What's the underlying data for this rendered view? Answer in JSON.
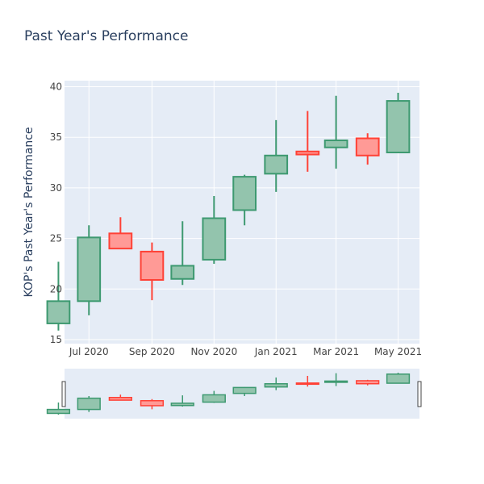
{
  "chart_data": {
    "type": "candlestick",
    "title": "Past Year's Performance",
    "ylabel": "KOP's Past Year's Performance",
    "xlabel": "",
    "ylim": [
      14.6,
      40.6
    ],
    "yticks": [
      15,
      20,
      25,
      30,
      35,
      40
    ],
    "xlim": [
      "2020-06-07",
      "2021-05-22"
    ],
    "xticks": [
      {
        "date": "2020-07-01",
        "label": "Jul 2020"
      },
      {
        "date": "2020-09-01",
        "label": "Sep 2020"
      },
      {
        "date": "2020-11-01",
        "label": "Nov 2020"
      },
      {
        "date": "2021-01-01",
        "label": "Jan 2021"
      },
      {
        "date": "2021-03-01",
        "label": "Mar 2021"
      },
      {
        "date": "2021-05-01",
        "label": "May 2021"
      }
    ],
    "candles": [
      {
        "date": "2020-06-01",
        "open": 16.6,
        "high": 22.7,
        "low": 15.9,
        "close": 18.8
      },
      {
        "date": "2020-07-01",
        "open": 18.8,
        "high": 26.3,
        "low": 17.4,
        "close": 25.1
      },
      {
        "date": "2020-08-01",
        "open": 25.5,
        "high": 27.1,
        "low": 24.0,
        "close": 24.0
      },
      {
        "date": "2020-09-01",
        "open": 23.7,
        "high": 24.6,
        "low": 18.9,
        "close": 20.9
      },
      {
        "date": "2020-10-01",
        "open": 21.0,
        "high": 26.7,
        "low": 20.4,
        "close": 22.3
      },
      {
        "date": "2020-11-01",
        "open": 22.9,
        "high": 29.2,
        "low": 22.5,
        "close": 27.0
      },
      {
        "date": "2020-12-01",
        "open": 27.8,
        "high": 31.3,
        "low": 26.3,
        "close": 31.1
      },
      {
        "date": "2021-01-01",
        "open": 31.4,
        "high": 36.7,
        "low": 29.6,
        "close": 33.2
      },
      {
        "date": "2021-02-01",
        "open": 33.6,
        "high": 37.6,
        "low": 31.6,
        "close": 33.3
      },
      {
        "date": "2021-03-01",
        "open": 34.0,
        "high": 39.1,
        "low": 31.9,
        "close": 34.7
      },
      {
        "date": "2021-04-01",
        "open": 34.9,
        "high": 35.4,
        "low": 32.3,
        "close": 33.2
      },
      {
        "date": "2021-05-01",
        "open": 33.5,
        "high": 39.4,
        "low": 33.5,
        "close": 38.6
      }
    ],
    "colors": {
      "increasing": "#3d9970",
      "increasing_fill": "#93c4ad",
      "decreasing": "#ff4136",
      "decreasing_fill": "#ff9a96",
      "plot_background": "#e5ecf6",
      "grid": "#ffffff",
      "text": "#2a3f5f",
      "tick_text": "#444444"
    },
    "grid": true,
    "legend": false,
    "rangeslider": true
  }
}
